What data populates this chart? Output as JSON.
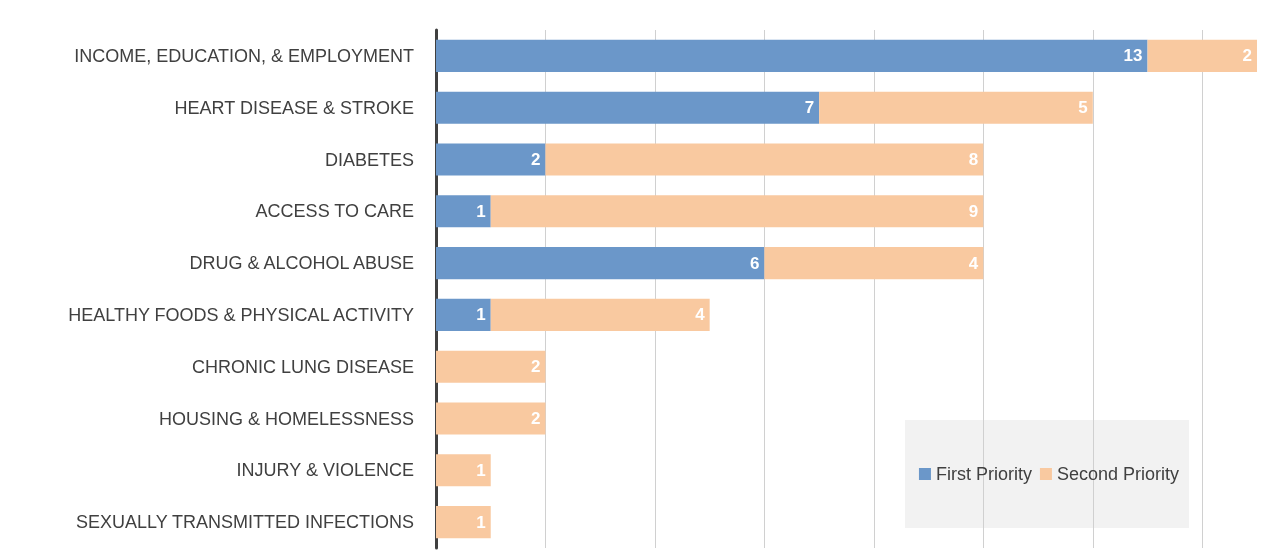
{
  "chart_data": {
    "type": "bar",
    "orientation": "horizontal",
    "stacked": true,
    "data_labels": true,
    "categories": [
      "INCOME, EDUCATION, & EMPLOYMENT",
      "HEART DISEASE & STROKE",
      "DIABETES",
      "ACCESS TO CARE",
      "DRUG & ALCOHOL ABUSE",
      "HEALTHY FOODS & PHYSICAL ACTIVITY",
      "CHRONIC LUNG DISEASE",
      "HOUSING & HOMELESSNESS",
      "INJURY & VIOLENCE",
      "SEXUALLY TRANSMITTED INFECTIONS"
    ],
    "series": [
      {
        "name": "First Priority",
        "color": "#6b97c9",
        "values": [
          13,
          7,
          2,
          1,
          6,
          1,
          null,
          null,
          null,
          null
        ]
      },
      {
        "name": "Second Priority",
        "color": "#f9c9a0",
        "values": [
          2,
          5,
          8,
          9,
          4,
          4,
          2,
          2,
          1,
          1
        ]
      }
    ],
    "xticks": [
      {
        "value": 0,
        "label": null
      },
      {
        "value": 2,
        "label": null
      },
      {
        "value": 4,
        "label": null
      },
      {
        "value": 6,
        "label": null
      },
      {
        "value": 8,
        "label": null
      },
      {
        "value": 10,
        "label": null
      },
      {
        "value": 12,
        "label": null
      },
      {
        "value": 14,
        "label": null
      }
    ],
    "grid": "x",
    "tick_labels": "y",
    "legend": "bottom right"
  }
}
